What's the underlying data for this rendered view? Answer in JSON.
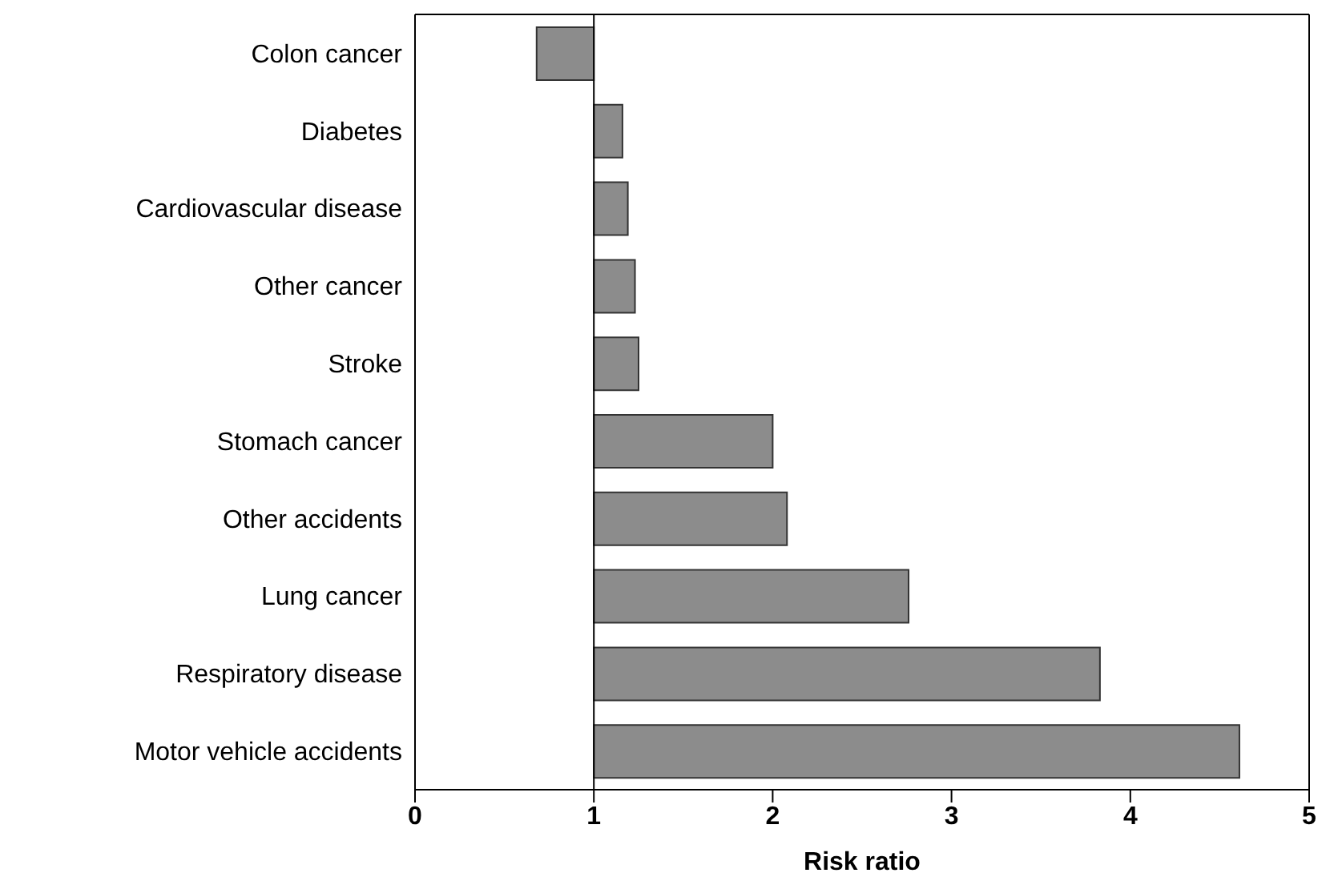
{
  "chart_data": {
    "type": "bar",
    "orientation": "horizontal",
    "xlabel": "Risk ratio",
    "categories": [
      "Colon cancer",
      "Diabetes",
      "Cardiovascular disease",
      "Other cancer",
      "Stroke",
      "Stomach cancer",
      "Other accidents",
      "Lung cancer",
      "Respiratory disease",
      "Motor vehicle accidents"
    ],
    "base": [
      1,
      1,
      1,
      1,
      1,
      1,
      1,
      1,
      1,
      1
    ],
    "values": [
      -0.32,
      0.16,
      0.19,
      0.23,
      0.25,
      1.0,
      1.08,
      1.76,
      2.83,
      3.61
    ],
    "color": "#8c8c8c",
    "xlim": [
      0,
      5
    ],
    "xticks": [
      0,
      1,
      2,
      3,
      4,
      5
    ],
    "ref_lines": [
      {
        "axis": "x",
        "value": 1,
        "color": "#000000"
      }
    ],
    "grid": false
  }
}
